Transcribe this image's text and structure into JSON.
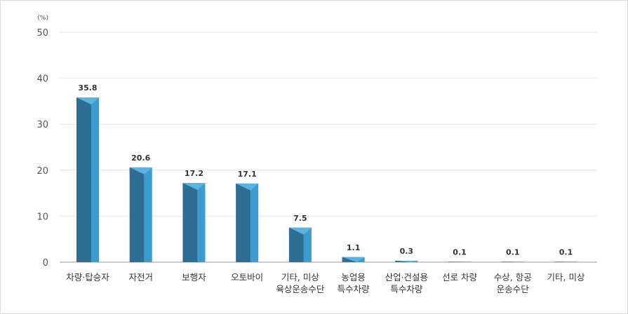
{
  "chart_data": {
    "type": "bar",
    "unit": "(%)",
    "ylim": [
      0,
      50
    ],
    "yticks": [
      0,
      10,
      20,
      30,
      40,
      50
    ],
    "grid": true,
    "categories": [
      [
        "차량·탑승자"
      ],
      [
        "자전거"
      ],
      [
        "보행자"
      ],
      [
        "오토바이"
      ],
      [
        "기타, 미상",
        "육상운송수단"
      ],
      [
        "농업용",
        "특수차량"
      ],
      [
        "산업·건설용",
        "특수차량"
      ],
      [
        "선로 차량"
      ],
      [
        "수상, 항공",
        "운송수단"
      ],
      [
        "기타, 미상"
      ]
    ],
    "values": [
      35.8,
      20.6,
      17.2,
      17.1,
      7.5,
      1.1,
      0.3,
      0.1,
      0.1,
      0.1
    ],
    "colors": {
      "front": "#2e6d94",
      "side": "#3d9ccf",
      "top": "#5ab4e0"
    }
  }
}
